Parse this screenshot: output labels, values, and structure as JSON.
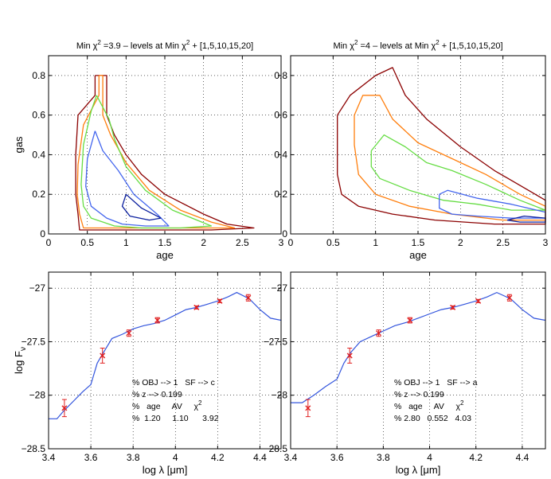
{
  "chart_data": [
    {
      "id": "p1",
      "type": "contour",
      "title": {
        "prefix": "Min ",
        "chi": "χ",
        "sup": "2",
        "mid": " =3.9 – levels at Min ",
        "chi2": "χ",
        "sup2": "2",
        "suffix": " + [1,5,10,15,20]"
      },
      "xlabel": "age",
      "ylabel": "gas",
      "xlim": [
        0,
        3
      ],
      "ylim": [
        0,
        0.9
      ],
      "xticks": [
        0,
        0.5,
        1,
        1.5,
        2,
        2.5,
        3
      ],
      "yticks": [
        0,
        0.2,
        0.4,
        0.6,
        0.8
      ],
      "xtick_labels": [
        "0",
        "0.5",
        "1",
        "1.5",
        "2",
        "2.5",
        "3"
      ],
      "ytick_labels": [
        "0",
        "0.2",
        "0.4",
        "0.6",
        "0.8"
      ],
      "grid": true,
      "contours": [
        {
          "level": "min+20",
          "color": "#8b0000",
          "points": [
            [
              0.6,
              0.8
            ],
            [
              0.75,
              0.8
            ],
            [
              0.75,
              0.6
            ],
            [
              0.85,
              0.5
            ],
            [
              1.0,
              0.4
            ],
            [
              1.2,
              0.3
            ],
            [
              1.5,
              0.2
            ],
            [
              2.0,
              0.1
            ],
            [
              2.3,
              0.05
            ],
            [
              2.65,
              0.03
            ],
            [
              2.1,
              0.02
            ],
            [
              1.5,
              0.02
            ],
            [
              0.8,
              0.02
            ],
            [
              0.4,
              0.02
            ],
            [
              0.38,
              0.1
            ],
            [
              0.35,
              0.2
            ],
            [
              0.35,
              0.4
            ],
            [
              0.38,
              0.6
            ],
            [
              0.6,
              0.7
            ],
            [
              0.6,
              0.8
            ]
          ]
        },
        {
          "level": "min+15",
          "color": "#ff7f0e",
          "points": [
            [
              0.65,
              0.8
            ],
            [
              0.7,
              0.8
            ],
            [
              0.7,
              0.6
            ],
            [
              0.8,
              0.5
            ],
            [
              1.0,
              0.36
            ],
            [
              1.3,
              0.22
            ],
            [
              1.7,
              0.12
            ],
            [
              2.1,
              0.06
            ],
            [
              2.4,
              0.03
            ],
            [
              2.0,
              0.03
            ],
            [
              1.4,
              0.03
            ],
            [
              0.8,
              0.03
            ],
            [
              0.45,
              0.03
            ],
            [
              0.4,
              0.1
            ],
            [
              0.37,
              0.2
            ],
            [
              0.38,
              0.35
            ],
            [
              0.45,
              0.55
            ],
            [
              0.65,
              0.7
            ],
            [
              0.65,
              0.8
            ]
          ]
        },
        {
          "level": "min+10",
          "color": "#66dd44",
          "points": [
            [
              0.62,
              0.7
            ],
            [
              0.78,
              0.58
            ],
            [
              0.85,
              0.48
            ],
            [
              1.0,
              0.34
            ],
            [
              1.25,
              0.22
            ],
            [
              1.6,
              0.12
            ],
            [
              2.1,
              0.04
            ],
            [
              1.7,
              0.03
            ],
            [
              1.2,
              0.03
            ],
            [
              0.85,
              0.04
            ],
            [
              0.55,
              0.08
            ],
            [
              0.45,
              0.14
            ],
            [
              0.42,
              0.25
            ],
            [
              0.45,
              0.45
            ],
            [
              0.55,
              0.62
            ],
            [
              0.62,
              0.7
            ]
          ]
        },
        {
          "level": "min+5",
          "color": "#4466ee",
          "points": [
            [
              0.6,
              0.52
            ],
            [
              0.7,
              0.42
            ],
            [
              0.9,
              0.32
            ],
            [
              1.1,
              0.2
            ],
            [
              1.4,
              0.1
            ],
            [
              1.55,
              0.04
            ],
            [
              1.25,
              0.04
            ],
            [
              0.95,
              0.05
            ],
            [
              0.75,
              0.08
            ],
            [
              0.55,
              0.14
            ],
            [
              0.48,
              0.24
            ],
            [
              0.5,
              0.38
            ],
            [
              0.6,
              0.52
            ]
          ]
        },
        {
          "level": "min+1",
          "color": "#0a1e9e",
          "points": [
            [
              1.0,
              0.2
            ],
            [
              1.2,
              0.13
            ],
            [
              1.45,
              0.08
            ],
            [
              1.3,
              0.07
            ],
            [
              1.05,
              0.09
            ],
            [
              0.95,
              0.14
            ],
            [
              1.0,
              0.2
            ]
          ]
        }
      ]
    },
    {
      "id": "p2",
      "type": "contour",
      "title": {
        "prefix": "Min ",
        "chi": "χ",
        "sup": "2",
        "mid": " =4 – levels at Min ",
        "chi2": "χ",
        "sup2": "2",
        "suffix": " + [1,5,10,15,20]"
      },
      "xlabel": "age",
      "ylabel": "",
      "xlim": [
        0,
        3
      ],
      "ylim": [
        0,
        0.9
      ],
      "xticks": [
        0,
        0.5,
        1,
        1.5,
        2,
        2.5,
        3
      ],
      "yticks": [
        0,
        0.2,
        0.4,
        0.6,
        0.8
      ],
      "xtick_labels": [
        "0",
        "0.5",
        "1",
        "1.5",
        "2",
        "2.5",
        "3"
      ],
      "ytick_labels": [
        "0",
        "0.2",
        "0.4",
        "0.6",
        "0.8"
      ],
      "grid": true,
      "contours": [
        {
          "level": "min+20",
          "color": "#8b0000",
          "points": [
            [
              0.55,
              0.6
            ],
            [
              0.7,
              0.7
            ],
            [
              1.0,
              0.8
            ],
            [
              1.2,
              0.84
            ],
            [
              1.35,
              0.7
            ],
            [
              1.6,
              0.58
            ],
            [
              2.0,
              0.44
            ],
            [
              2.4,
              0.32
            ],
            [
              2.8,
              0.22
            ],
            [
              3.0,
              0.17
            ],
            [
              3.0,
              0.05
            ],
            [
              2.4,
              0.05
            ],
            [
              1.7,
              0.07
            ],
            [
              1.2,
              0.1
            ],
            [
              0.8,
              0.14
            ],
            [
              0.6,
              0.2
            ],
            [
              0.55,
              0.3
            ],
            [
              0.55,
              0.6
            ]
          ]
        },
        {
          "level": "min+15",
          "color": "#ff7f0e",
          "points": [
            [
              0.75,
              0.6
            ],
            [
              0.85,
              0.7
            ],
            [
              1.05,
              0.7
            ],
            [
              1.2,
              0.58
            ],
            [
              1.5,
              0.46
            ],
            [
              1.9,
              0.38
            ],
            [
              2.3,
              0.3
            ],
            [
              2.7,
              0.2
            ],
            [
              3.0,
              0.14
            ],
            [
              3.0,
              0.07
            ],
            [
              2.5,
              0.07
            ],
            [
              1.9,
              0.1
            ],
            [
              1.4,
              0.14
            ],
            [
              1.0,
              0.2
            ],
            [
              0.8,
              0.3
            ],
            [
              0.75,
              0.45
            ],
            [
              0.75,
              0.6
            ]
          ]
        },
        {
          "level": "min+10",
          "color": "#66dd44",
          "points": [
            [
              0.95,
              0.42
            ],
            [
              1.1,
              0.5
            ],
            [
              1.35,
              0.44
            ],
            [
              1.6,
              0.36
            ],
            [
              1.9,
              0.32
            ],
            [
              2.3,
              0.25
            ],
            [
              2.7,
              0.17
            ],
            [
              3.0,
              0.12
            ],
            [
              2.6,
              0.12
            ],
            [
              2.2,
              0.15
            ],
            [
              1.8,
              0.17
            ],
            [
              1.4,
              0.22
            ],
            [
              1.05,
              0.28
            ],
            [
              0.95,
              0.34
            ],
            [
              0.95,
              0.42
            ]
          ]
        },
        {
          "level": "min+5",
          "color": "#4466ee",
          "points": [
            [
              1.75,
              0.2
            ],
            [
              1.85,
              0.22
            ],
            [
              2.2,
              0.18
            ],
            [
              2.6,
              0.15
            ],
            [
              3.0,
              0.11
            ],
            [
              3.0,
              0.08
            ],
            [
              2.6,
              0.08
            ],
            [
              2.2,
              0.09
            ],
            [
              1.9,
              0.1
            ],
            [
              1.75,
              0.13
            ],
            [
              1.75,
              0.2
            ]
          ]
        },
        {
          "level": "min+1",
          "color": "#0a1e9e",
          "points": [
            [
              2.55,
              0.07
            ],
            [
              2.75,
              0.09
            ],
            [
              3.0,
              0.08
            ],
            [
              3.0,
              0.06
            ],
            [
              2.7,
              0.06
            ],
            [
              2.55,
              0.07
            ]
          ]
        }
      ]
    },
    {
      "id": "p3",
      "type": "line",
      "xlabel": "log λ [μm]",
      "ylabel": {
        "main": "log F",
        "sub": "ν"
      },
      "xlim": [
        3.4,
        4.5
      ],
      "ylim": [
        -28.5,
        -26.85
      ],
      "xticks": [
        3.4,
        3.6,
        3.8,
        4.0,
        4.2,
        4.4
      ],
      "yticks": [
        -28.5,
        -28,
        -27.5,
        -27
      ],
      "xtick_labels": [
        "3.4",
        "3.6",
        "3.8",
        "4",
        "4.2",
        "4.4"
      ],
      "ytick_labels": [
        "−28.5",
        "−28",
        "−27.5",
        "−27"
      ],
      "grid": true,
      "model": [
        [
          3.4,
          -28.22
        ],
        [
          3.44,
          -28.22
        ],
        [
          3.47,
          -28.15
        ],
        [
          3.52,
          -28.05
        ],
        [
          3.56,
          -27.97
        ],
        [
          3.6,
          -27.9
        ],
        [
          3.63,
          -27.7
        ],
        [
          3.66,
          -27.6
        ],
        [
          3.7,
          -27.47
        ],
        [
          3.75,
          -27.43
        ],
        [
          3.8,
          -27.38
        ],
        [
          3.85,
          -27.35
        ],
        [
          3.9,
          -27.33
        ],
        [
          3.95,
          -27.3
        ],
        [
          4.0,
          -27.25
        ],
        [
          4.05,
          -27.2
        ],
        [
          4.1,
          -27.18
        ],
        [
          4.15,
          -27.15
        ],
        [
          4.2,
          -27.12
        ],
        [
          4.25,
          -27.08
        ],
        [
          4.29,
          -27.04
        ],
        [
          4.35,
          -27.1
        ],
        [
          4.4,
          -27.2
        ],
        [
          4.45,
          -27.28
        ],
        [
          4.5,
          -27.3
        ]
      ],
      "obs": [
        {
          "x": 3.475,
          "y": -28.12,
          "err": 0.08
        },
        {
          "x": 3.655,
          "y": -27.63,
          "err": 0.07
        },
        {
          "x": 3.78,
          "y": -27.42,
          "err": 0.03
        },
        {
          "x": 3.915,
          "y": -27.3,
          "err": 0.025
        },
        {
          "x": 4.1,
          "y": -27.18,
          "err": 0.015
        },
        {
          "x": 4.21,
          "y": -27.12,
          "err": 0.015
        },
        {
          "x": 4.345,
          "y": -27.09,
          "err": 0.03
        }
      ],
      "annotation": {
        "line1": "% OBJ --> 1   SF --> c",
        "line2": "% z --> 0.199",
        "line3a": "%   age     AV     ",
        "line3chi": "χ",
        "line3sup": "2",
        "line4": "%  1.20     1.10      3.92"
      }
    },
    {
      "id": "p4",
      "type": "line",
      "xlabel": "log λ [μm]",
      "ylabel": "",
      "xlim": [
        3.4,
        4.5
      ],
      "ylim": [
        -28.5,
        -26.85
      ],
      "xticks": [
        3.4,
        3.6,
        3.8,
        4.0,
        4.2,
        4.4
      ],
      "yticks": [
        -28.5,
        -28,
        -27.5,
        -27
      ],
      "xtick_labels": [
        "3.4",
        "3.6",
        "3.8",
        "4",
        "4.2",
        "4.4"
      ],
      "ytick_labels": [
        "−28.5",
        "−28",
        "−27.5",
        "−27"
      ],
      "grid": true,
      "model": [
        [
          3.4,
          -28.07
        ],
        [
          3.45,
          -28.07
        ],
        [
          3.5,
          -28.0
        ],
        [
          3.55,
          -27.92
        ],
        [
          3.6,
          -27.85
        ],
        [
          3.63,
          -27.7
        ],
        [
          3.66,
          -27.6
        ],
        [
          3.7,
          -27.5
        ],
        [
          3.75,
          -27.45
        ],
        [
          3.8,
          -27.4
        ],
        [
          3.85,
          -27.35
        ],
        [
          3.9,
          -27.32
        ],
        [
          3.95,
          -27.28
        ],
        [
          4.0,
          -27.24
        ],
        [
          4.05,
          -27.2
        ],
        [
          4.1,
          -27.18
        ],
        [
          4.15,
          -27.15
        ],
        [
          4.2,
          -27.12
        ],
        [
          4.25,
          -27.08
        ],
        [
          4.29,
          -27.04
        ],
        [
          4.35,
          -27.1
        ],
        [
          4.4,
          -27.2
        ],
        [
          4.45,
          -27.28
        ],
        [
          4.5,
          -27.3
        ]
      ],
      "obs": [
        {
          "x": 3.475,
          "y": -28.12,
          "err": 0.08
        },
        {
          "x": 3.655,
          "y": -27.63,
          "err": 0.07
        },
        {
          "x": 3.78,
          "y": -27.42,
          "err": 0.03
        },
        {
          "x": 3.915,
          "y": -27.3,
          "err": 0.025
        },
        {
          "x": 4.1,
          "y": -27.18,
          "err": 0.015
        },
        {
          "x": 4.21,
          "y": -27.12,
          "err": 0.015
        },
        {
          "x": 4.345,
          "y": -27.09,
          "err": 0.03
        }
      ],
      "annotation": {
        "line1": "% OBJ --> 1   SF --> a",
        "line2": "% z --> 0.199",
        "line3a": "%   age     AV     ",
        "line3chi": "χ",
        "line3sup": "2",
        "line4": "% 2.80   0.552   4.03"
      }
    }
  ]
}
